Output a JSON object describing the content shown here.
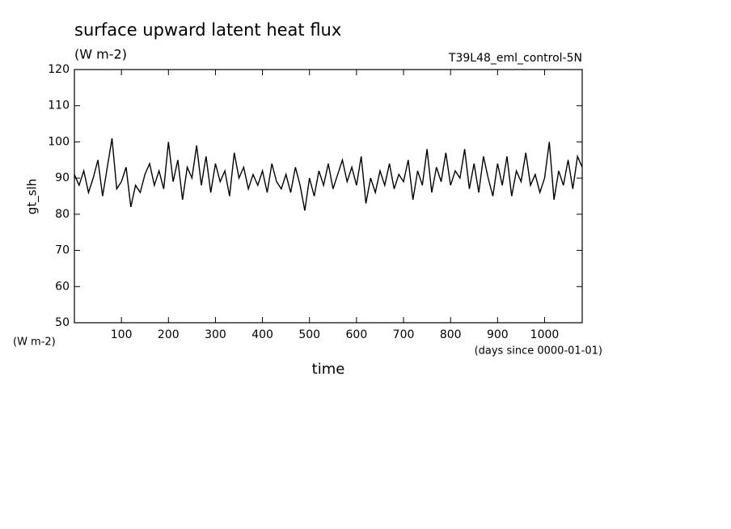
{
  "chart_data": {
    "type": "line",
    "title": "surface upward latent heat flux",
    "subtitle": "(W m-2)",
    "annotation": "T39L48_eml_control-5N",
    "ylabel": "gt_slh",
    "y_unit": "(W m-2)",
    "x_unit": "(days since 0000-01-01)",
    "xlabel": "time",
    "xlim": [
      0,
      1080
    ],
    "ylim": [
      50,
      120
    ],
    "xticks": [
      100,
      200,
      300,
      400,
      500,
      600,
      700,
      800,
      900,
      1000
    ],
    "yticks": [
      50,
      60,
      70,
      80,
      90,
      100,
      110,
      120
    ],
    "grid": false,
    "x": [
      0,
      10,
      20,
      30,
      40,
      50,
      60,
      70,
      80,
      90,
      100,
      110,
      120,
      130,
      140,
      150,
      160,
      170,
      180,
      190,
      200,
      210,
      220,
      230,
      240,
      250,
      260,
      270,
      280,
      290,
      300,
      310,
      320,
      330,
      340,
      350,
      360,
      370,
      380,
      390,
      400,
      410,
      420,
      430,
      440,
      450,
      460,
      470,
      480,
      490,
      500,
      510,
      520,
      530,
      540,
      550,
      560,
      570,
      580,
      590,
      600,
      610,
      620,
      630,
      640,
      650,
      660,
      670,
      680,
      690,
      700,
      710,
      720,
      730,
      740,
      750,
      760,
      770,
      780,
      790,
      800,
      810,
      820,
      830,
      840,
      850,
      860,
      870,
      880,
      890,
      900,
      910,
      920,
      930,
      940,
      950,
      960,
      970,
      980,
      990,
      1000,
      1010,
      1020,
      1030,
      1040,
      1050,
      1060,
      1070,
      1080
    ],
    "series": [
      {
        "color": "#000000",
        "values": [
          91,
          88,
          92,
          86,
          90,
          95,
          85,
          93,
          101,
          87,
          89,
          93,
          82,
          88,
          86,
          91,
          94,
          88,
          92,
          87,
          100,
          89,
          95,
          84,
          93,
          90,
          99,
          88,
          96,
          86,
          94,
          89,
          92,
          85,
          97,
          90,
          93,
          87,
          91,
          88,
          92,
          86,
          94,
          89,
          87,
          91,
          86,
          93,
          88,
          81,
          90,
          85,
          92,
          88,
          94,
          87,
          91,
          95,
          89,
          93,
          88,
          96,
          83,
          90,
          86,
          92,
          88,
          94,
          87,
          91,
          89,
          95,
          84,
          92,
          88,
          98,
          86,
          93,
          89,
          97,
          88,
          92,
          90,
          98,
          87,
          94,
          86,
          96,
          90,
          85,
          94,
          88,
          96,
          85,
          92,
          89,
          97,
          88,
          91,
          86,
          90,
          100,
          84,
          92,
          88,
          95,
          87,
          96,
          93
        ]
      }
    ]
  }
}
